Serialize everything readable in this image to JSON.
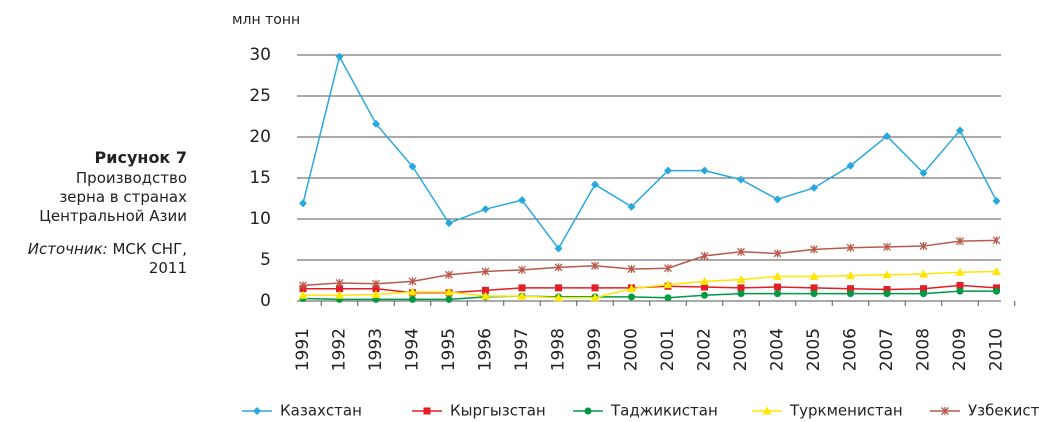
{
  "caption": {
    "figure": "Рисунок 7",
    "lines": [
      "Производство",
      "зерна в странах",
      "Центральной Азии"
    ],
    "source_label": "Источник:",
    "source": "МСК СНГ,",
    "source_year": "2011"
  },
  "chart_data": {
    "type": "line",
    "y_label": "млн тонн",
    "categories": [
      "1991",
      "1992",
      "1993",
      "1994",
      "1995",
      "1996",
      "1997",
      "1998",
      "1999",
      "2000",
      "2001",
      "2002",
      "2003",
      "2004",
      "2005",
      "2006",
      "2007",
      "2008",
      "2009",
      "2010"
    ],
    "ylim": [
      0,
      30
    ],
    "yticks": [
      0,
      5,
      10,
      15,
      20,
      25,
      30
    ],
    "grid": true,
    "legend": "bottom",
    "series": [
      {
        "name": "Казахстан",
        "color": "#29a8e0",
        "marker": "diamond",
        "values": [
          11.9,
          29.8,
          21.6,
          16.4,
          9.5,
          11.2,
          12.3,
          6.4,
          14.2,
          11.5,
          15.9,
          15.9,
          14.8,
          12.4,
          13.8,
          16.5,
          20.1,
          15.6,
          20.8,
          12.2
        ]
      },
      {
        "name": "Кыргызстан",
        "color": "#e31e24",
        "marker": "square",
        "values": [
          1.5,
          1.5,
          1.5,
          1.0,
          1.0,
          1.3,
          1.6,
          1.6,
          1.6,
          1.6,
          1.8,
          1.7,
          1.6,
          1.7,
          1.6,
          1.5,
          1.4,
          1.5,
          1.9,
          1.6
        ]
      },
      {
        "name": "Таджикистан",
        "color": "#009a44",
        "marker": "circle",
        "values": [
          0.3,
          0.2,
          0.2,
          0.2,
          0.2,
          0.5,
          0.6,
          0.5,
          0.5,
          0.5,
          0.4,
          0.7,
          0.9,
          0.9,
          0.9,
          0.9,
          0.9,
          0.9,
          1.2,
          1.2
        ]
      },
      {
        "name": "Туркменистан",
        "color": "#ffe600",
        "marker": "triangle",
        "values": [
          0.7,
          0.7,
          0.8,
          1.1,
          1.1,
          0.6,
          0.6,
          0.4,
          0.4,
          1.5,
          2.0,
          2.4,
          2.6,
          3.0,
          3.0,
          3.1,
          3.2,
          3.3,
          3.5,
          3.6
        ]
      },
      {
        "name": "Узбекистан",
        "color": "#b85a4b",
        "marker": "star",
        "values": [
          1.9,
          2.2,
          2.1,
          2.4,
          3.2,
          3.6,
          3.8,
          4.1,
          4.3,
          3.9,
          4.0,
          5.5,
          6.0,
          5.8,
          6.3,
          6.5,
          6.6,
          6.7,
          7.3,
          7.4
        ]
      }
    ]
  }
}
